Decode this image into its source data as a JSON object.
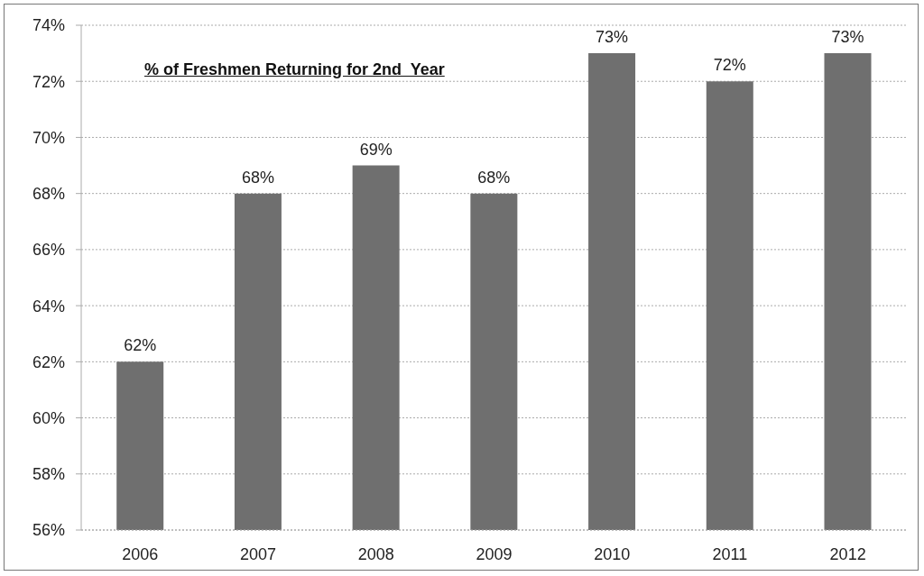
{
  "chart_data": {
    "type": "bar",
    "title": "% of Freshmen Returning for 2nd  Year",
    "categories": [
      "2006",
      "2007",
      "2008",
      "2009",
      "2010",
      "2011",
      "2012"
    ],
    "values": [
      62,
      68,
      69,
      68,
      73,
      72,
      73
    ],
    "value_labels": [
      "62%",
      "68%",
      "69%",
      "68%",
      "73%",
      "72%",
      "73%"
    ],
    "color": "#6f6f6f",
    "ylim": [
      56,
      74
    ],
    "yticks": [
      {
        "value": 56,
        "label": "56%"
      },
      {
        "value": 58,
        "label": "58%"
      },
      {
        "value": 60,
        "label": "60%"
      },
      {
        "value": 62,
        "label": "62%"
      },
      {
        "value": 64,
        "label": "64%"
      },
      {
        "value": 66,
        "label": "66%"
      },
      {
        "value": 68,
        "label": "68%"
      },
      {
        "value": 70,
        "label": "70%"
      },
      {
        "value": 72,
        "label": "72%"
      },
      {
        "value": 74,
        "label": "74%"
      }
    ],
    "grid": "y"
  }
}
